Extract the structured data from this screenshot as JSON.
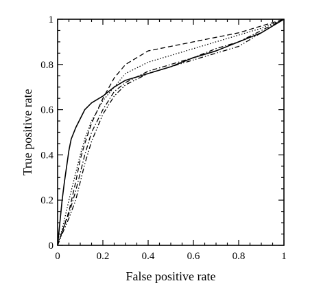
{
  "chart_data": {
    "type": "line",
    "xlabel": "False positive rate",
    "ylabel": "True positive rate",
    "xlim": [
      0,
      1
    ],
    "ylim": [
      0,
      1
    ],
    "grid": false,
    "legend": "none",
    "xticks": [
      "0",
      "0.2",
      "0.4",
      "0.6",
      "0.8",
      "1"
    ],
    "yticks": [
      "0",
      "0.2",
      "0.4",
      "0.6",
      "0.8",
      "1"
    ],
    "tick_values": [
      0,
      0.2,
      0.4,
      0.6,
      0.8,
      1
    ],
    "series": [
      {
        "line_style": "solid",
        "x": [
          0,
          0.01,
          0.02,
          0.03,
          0.04,
          0.05,
          0.06,
          0.08,
          0.1,
          0.12,
          0.15,
          0.2,
          0.25,
          0.3,
          0.4,
          0.5,
          0.6,
          0.7,
          0.8,
          0.9,
          1.0
        ],
        "y": [
          0,
          0.1,
          0.2,
          0.28,
          0.35,
          0.42,
          0.47,
          0.52,
          0.56,
          0.6,
          0.63,
          0.66,
          0.7,
          0.73,
          0.76,
          0.79,
          0.83,
          0.86,
          0.9,
          0.94,
          1.0
        ]
      },
      {
        "line_style": "dashed",
        "x": [
          0,
          0.02,
          0.05,
          0.08,
          0.1,
          0.12,
          0.15,
          0.2,
          0.25,
          0.3,
          0.35,
          0.4,
          0.5,
          0.6,
          0.7,
          0.8,
          0.9,
          1.0
        ],
        "y": [
          0,
          0.06,
          0.15,
          0.28,
          0.38,
          0.45,
          0.54,
          0.65,
          0.74,
          0.8,
          0.83,
          0.86,
          0.88,
          0.9,
          0.92,
          0.94,
          0.97,
          1.0
        ]
      },
      {
        "line_style": "dotted",
        "x": [
          0,
          0.02,
          0.05,
          0.08,
          0.1,
          0.12,
          0.15,
          0.2,
          0.25,
          0.3,
          0.4,
          0.5,
          0.6,
          0.7,
          0.8,
          0.9,
          1.0
        ],
        "y": [
          0,
          0.07,
          0.2,
          0.32,
          0.4,
          0.47,
          0.55,
          0.64,
          0.7,
          0.76,
          0.81,
          0.84,
          0.87,
          0.9,
          0.93,
          0.96,
          1.0
        ]
      },
      {
        "line_style": "dash-dot",
        "x": [
          0,
          0.02,
          0.05,
          0.08,
          0.1,
          0.12,
          0.15,
          0.2,
          0.25,
          0.3,
          0.4,
          0.5,
          0.6,
          0.7,
          0.8,
          0.9,
          1.0
        ],
        "y": [
          0,
          0.06,
          0.14,
          0.24,
          0.32,
          0.4,
          0.5,
          0.6,
          0.68,
          0.72,
          0.77,
          0.8,
          0.83,
          0.87,
          0.9,
          0.95,
          1.0
        ]
      },
      {
        "line_style": "dash-dot-dot",
        "x": [
          0,
          0.02,
          0.05,
          0.08,
          0.1,
          0.12,
          0.15,
          0.2,
          0.25,
          0.3,
          0.4,
          0.5,
          0.6,
          0.7,
          0.8,
          0.9,
          1.0
        ],
        "y": [
          0,
          0.05,
          0.12,
          0.2,
          0.28,
          0.36,
          0.46,
          0.58,
          0.66,
          0.71,
          0.76,
          0.79,
          0.82,
          0.85,
          0.88,
          0.94,
          1.0
        ]
      }
    ]
  }
}
